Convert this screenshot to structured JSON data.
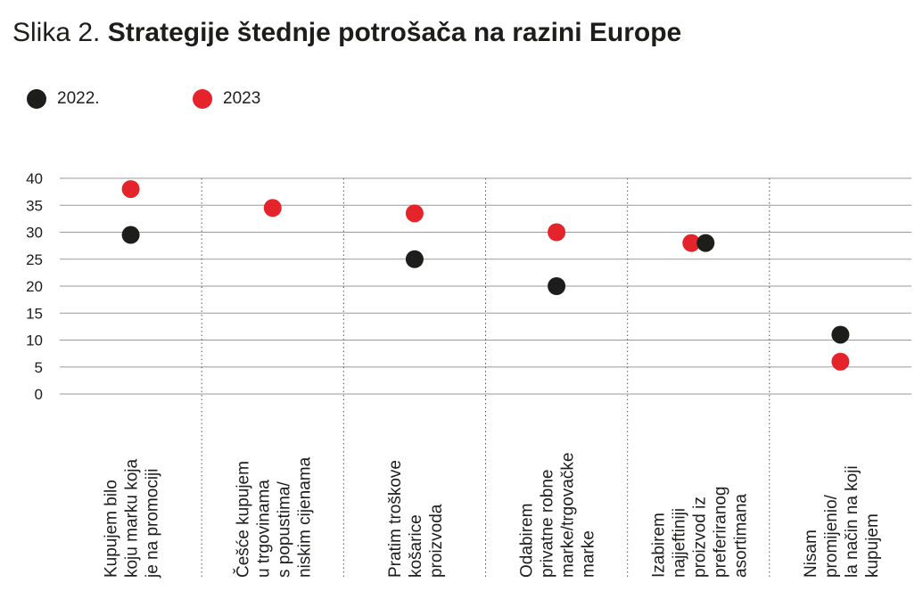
{
  "title": {
    "prefix": "Slika 2.",
    "main": "Strategije štednje potrošača na razini Europe"
  },
  "colors": {
    "series_2022": "#1d1d1b",
    "series_2023": "#e5232b",
    "grid": "#9a9a9a",
    "text": "#1d1d1b"
  },
  "chart_data": {
    "type": "scatter",
    "title": "Strategije štednje potrošača na razini Europe",
    "xlabel": "",
    "ylabel": "",
    "ylim": [
      0,
      40
    ],
    "yticks": [
      0,
      5,
      10,
      15,
      20,
      25,
      30,
      35,
      40
    ],
    "grid": true,
    "legend_position": "top-left",
    "categories": [
      [
        "Kupujem bilo",
        "koju marku koja",
        "je na promociji"
      ],
      [
        "Češće kupujem",
        "u trgovinama",
        "s popustima/",
        "niskim cijenama"
      ],
      [
        "Pratim troškove",
        "košarice",
        "proizvoda"
      ],
      [
        "Odabirem",
        "privatne robne",
        "marke/trgovačke",
        "marke"
      ],
      [
        "Izabirem",
        "najjeftiniji",
        "proizvod iz",
        "preferiranog",
        "asortimana"
      ],
      [
        "Nisam",
        "promijenio/",
        "la način na koji",
        "kupujem"
      ]
    ],
    "series": [
      {
        "name": "2022.",
        "values": [
          29.5,
          null,
          25,
          20,
          28,
          11
        ]
      },
      {
        "name": "2023",
        "values": [
          38,
          34.5,
          33.5,
          30,
          28,
          6
        ]
      }
    ]
  }
}
